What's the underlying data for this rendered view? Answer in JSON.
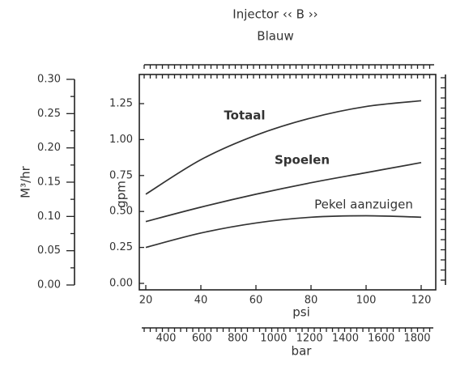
{
  "chart_data": {
    "type": "line",
    "title": "Injector ‹‹ B ››",
    "subtitle": "Blauw",
    "x_label": "psi",
    "y_label": "gpm",
    "y2_label": "M³/hr",
    "x2_label": "bar",
    "x": [
      20,
      40,
      60,
      80,
      100,
      120
    ],
    "xlim": [
      20,
      120
    ],
    "xticks": [
      20,
      40,
      60,
      80,
      100,
      120
    ],
    "ylim": [
      0,
      1.25
    ],
    "yticks": [
      {
        "value": 0,
        "label": "0.00"
      },
      {
        "value": 0.25,
        "label": "0.25"
      },
      {
        "value": 0.5,
        "label": "0.50"
      },
      {
        "value": 0.75,
        "label": "0.75"
      },
      {
        "value": 1,
        "label": "1.00"
      },
      {
        "value": 1.25,
        "label": "1.25"
      }
    ],
    "y2lim": [
      0,
      0.3
    ],
    "y2ticks": [
      {
        "value": 0,
        "label": "0.00"
      },
      {
        "value": 0.05,
        "label": "0.05"
      },
      {
        "value": 0.1,
        "label": "0.10"
      },
      {
        "value": 0.15,
        "label": "0.15"
      },
      {
        "value": 0.2,
        "label": "0.20"
      },
      {
        "value": 0.25,
        "label": "0.25"
      },
      {
        "value": 0.3,
        "label": "0.30"
      }
    ],
    "x2lim": [
      400,
      1800
    ],
    "x2ticks": [
      400,
      600,
      800,
      1000,
      1200,
      1400,
      1600,
      1800
    ],
    "series": [
      {
        "name": "Totaal",
        "color": "#333333",
        "values": [
          0.62,
          0.86,
          1.03,
          1.15,
          1.23,
          1.27
        ]
      },
      {
        "name": "Spoelen",
        "color": "#333333",
        "values": [
          0.43,
          0.53,
          0.62,
          0.7,
          0.77,
          0.84
        ]
      },
      {
        "name": "Pekel aanzuigen",
        "color": "#333333",
        "values": [
          0.25,
          0.35,
          0.42,
          0.46,
          0.47,
          0.46
        ]
      }
    ]
  }
}
